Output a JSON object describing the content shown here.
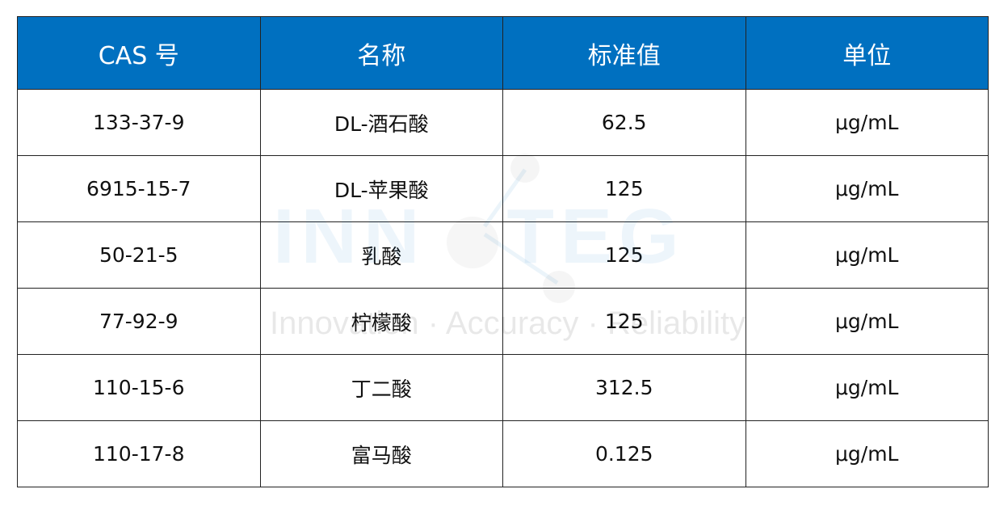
{
  "table": {
    "headers": [
      "CAS 号",
      "名称",
      "标准值",
      "单位"
    ],
    "rows": [
      [
        "133-37-9",
        "DL-酒石酸",
        "62.5",
        "μg/mL"
      ],
      [
        "6915-15-7",
        "DL-苹果酸",
        "125",
        "μg/mL"
      ],
      [
        "50-21-5",
        "乳酸",
        "125",
        "μg/mL"
      ],
      [
        "77-92-9",
        "柠檬酸",
        "125",
        "μg/mL"
      ],
      [
        "110-15-6",
        "丁二酸",
        "312.5",
        "μg/mL"
      ],
      [
        "110-17-8",
        "富马酸",
        "0.125",
        "μg/mL"
      ]
    ]
  },
  "watermark": {
    "logo": "INNOTEG",
    "logo_left": "INN",
    "logo_right": "TEG",
    "tagline": "Innovation · Accuracy · Reliability"
  },
  "colors": {
    "header_bg": "#0070C0",
    "header_text": "#FFFFFF"
  }
}
